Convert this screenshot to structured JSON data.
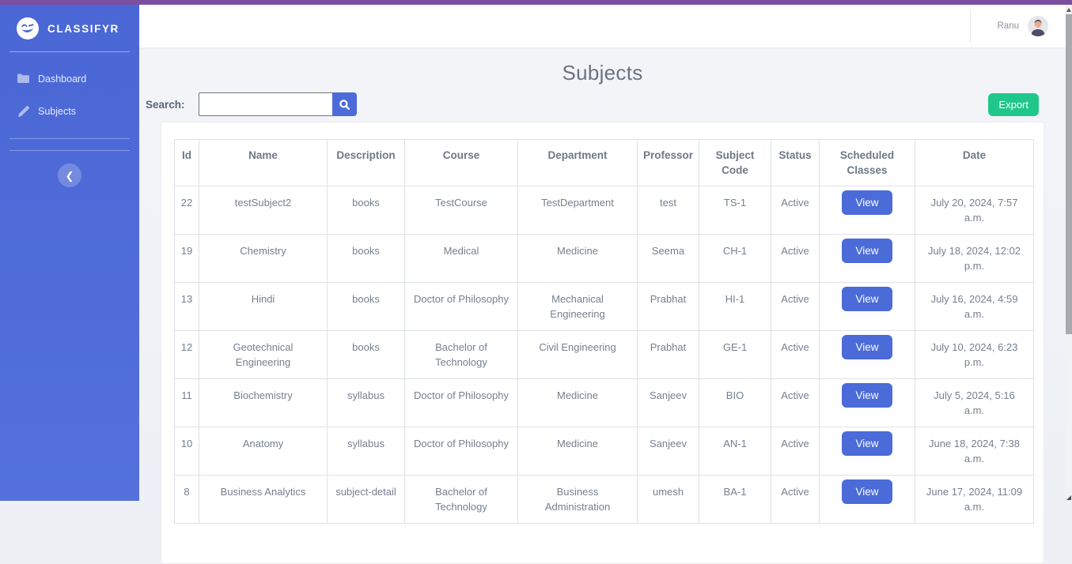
{
  "topbar": {
    "color": "#7a4f9e"
  },
  "sidebar": {
    "brand": "CLASSIFYR",
    "items": [
      {
        "label": "Dashboard",
        "icon": "folder-icon"
      },
      {
        "label": "Subjects",
        "icon": "pencil-icon"
      }
    ],
    "collapse_glyph": "❮"
  },
  "header": {
    "user_name": "Ranu"
  },
  "page": {
    "title": "Subjects",
    "search_label": "Search:",
    "search_value": "",
    "export_label": "Export"
  },
  "table": {
    "columns": [
      "Id",
      "Name",
      "Description",
      "Course",
      "Department",
      "Professor",
      "Subject Code",
      "Status",
      "Scheduled Classes",
      "Date"
    ],
    "view_label": "View",
    "rows": [
      {
        "id": "22",
        "name": "testSubject2",
        "description": "books",
        "course": "TestCourse",
        "department": "TestDepartment",
        "professor": "test",
        "subject_code": "TS-1",
        "status": "Active",
        "date": "July 20, 2024, 7:57 a.m."
      },
      {
        "id": "19",
        "name": "Chemistry",
        "description": "books",
        "course": "Medical",
        "department": "Medicine",
        "professor": "Seema",
        "subject_code": "CH-1",
        "status": "Active",
        "date": "July 18, 2024, 12:02 p.m."
      },
      {
        "id": "13",
        "name": "Hindi",
        "description": "books",
        "course": "Doctor of Philosophy",
        "department": "Mechanical Engineering",
        "professor": "Prabhat",
        "subject_code": "HI-1",
        "status": "Active",
        "date": "July 16, 2024, 4:59 a.m."
      },
      {
        "id": "12",
        "name": "Geotechnical Engineering",
        "description": "books",
        "course": "Bachelor of Technology",
        "department": "Civil Engineering",
        "professor": "Prabhat",
        "subject_code": "GE-1",
        "status": "Active",
        "date": "July 10, 2024, 6:23 p.m."
      },
      {
        "id": "11",
        "name": "Biochemistry",
        "description": "syllabus",
        "course": "Doctor of Philosophy",
        "department": "Medicine",
        "professor": "Sanjeev",
        "subject_code": "BIO",
        "status": "Active",
        "date": "July 5, 2024, 5:16 a.m."
      },
      {
        "id": "10",
        "name": "Anatomy",
        "description": "syllabus",
        "course": "Doctor of Philosophy",
        "department": "Medicine",
        "professor": "Sanjeev",
        "subject_code": "AN-1",
        "status": "Active",
        "date": "June 18, 2024, 7:38 a.m."
      },
      {
        "id": "8",
        "name": "Business Analytics",
        "description": "subject-detail",
        "course": "Bachelor of Technology",
        "department": "Business Administration",
        "professor": "umesh",
        "subject_code": "BA-1",
        "status": "Active",
        "date": "June 17, 2024, 11:09 a.m."
      }
    ]
  },
  "colors": {
    "sidebar_blue": "#4d6ad6",
    "button_blue": "#4a6bd8",
    "export_green": "#20c78b",
    "topbar_purple": "#7a4f9e",
    "table_border": "#dee2e6",
    "text_grey": "#75808d"
  }
}
